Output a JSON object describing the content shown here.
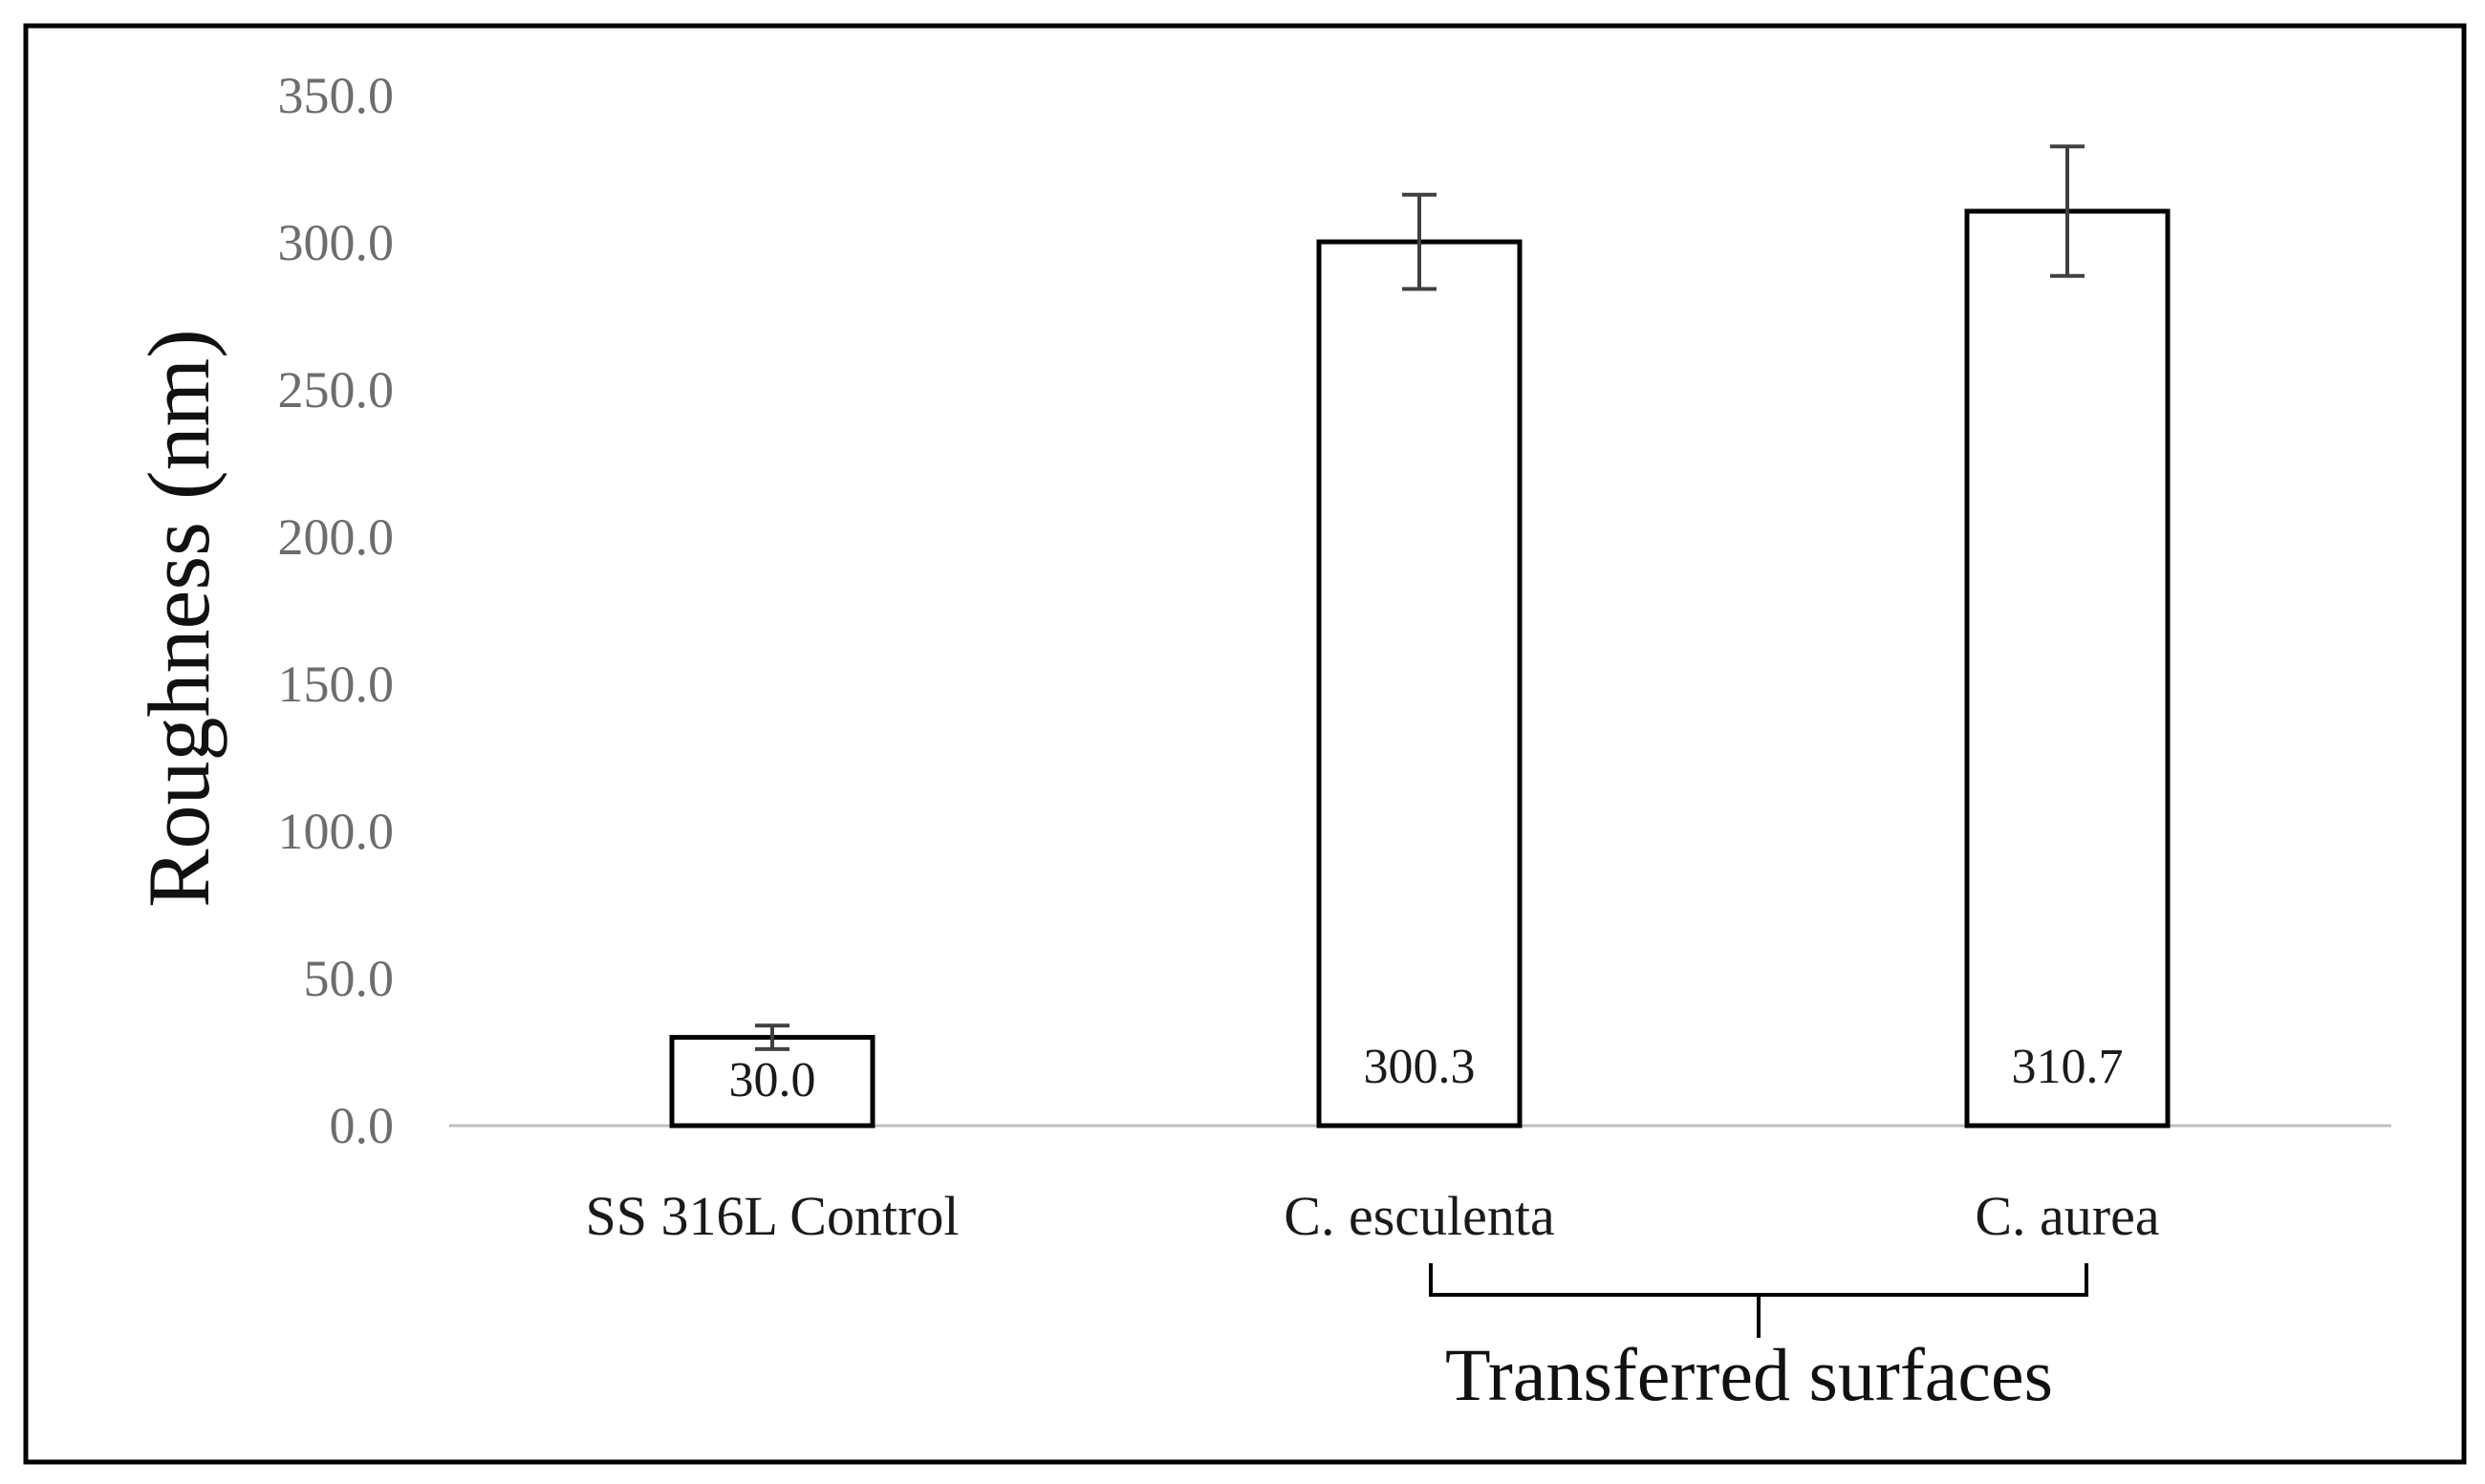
{
  "chart_data": {
    "type": "bar",
    "categories": [
      "SS 316L Control",
      "C. esculenta",
      "C. aurea"
    ],
    "values": [
      30.0,
      300.3,
      310.7
    ],
    "value_labels": [
      "30.0",
      "300.3",
      "310.7"
    ],
    "error": [
      4,
      16,
      22
    ],
    "ylabel": "Roughness (nm)",
    "ylim": [
      0,
      350
    ],
    "yticks": [
      "0.0",
      "50.0",
      "100.0",
      "150.0",
      "200.0",
      "250.0",
      "300.0",
      "350.0"
    ],
    "ytick_values": [
      0,
      50,
      100,
      150,
      200,
      250,
      300,
      350
    ],
    "group_label": "Transferred surfaces",
    "grid": false,
    "legend": false,
    "colors": {
      "bar_fill": "#ffffff",
      "bar_stroke": "#000000",
      "error_bar": "#404040",
      "baseline": "#bfbfbf",
      "tick_text": "#6d6d6d",
      "frame": "#000000"
    }
  }
}
